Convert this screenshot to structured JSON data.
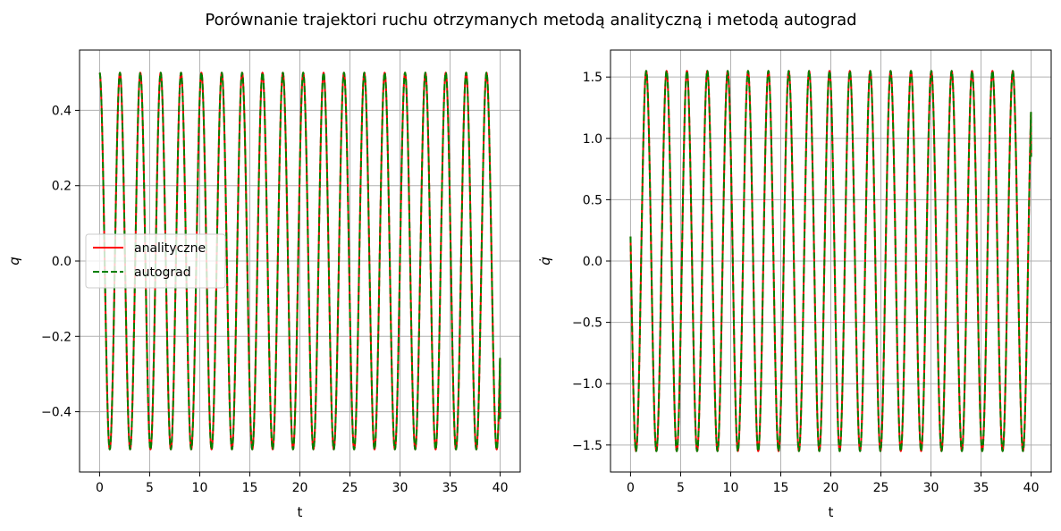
{
  "figure": {
    "title": "Porównanie trajektori ruchu otrzymanych metodą analityczną i metodą autograd"
  },
  "legend": {
    "placement": "center-left",
    "entries": [
      "analityczne",
      "autograd"
    ]
  },
  "colors": {
    "analityczne": "#ff0000",
    "autograd": "#008000",
    "grid": "#b0b0b0"
  },
  "chart_data": [
    {
      "type": "line",
      "xlabel": "t",
      "ylabel": "q",
      "xlim": [
        -2,
        42
      ],
      "ylim": [
        -0.56,
        0.56
      ],
      "xticks": [
        0,
        5,
        10,
        15,
        20,
        25,
        30,
        35,
        40
      ],
      "yticks": [
        -0.4,
        -0.2,
        0.0,
        0.2,
        0.4
      ],
      "ytick_labels": [
        "−0.4",
        "−0.2",
        "0.0",
        "0.2",
        "0.4"
      ],
      "grid": true,
      "legend": "center-left",
      "signal": {
        "form": "amplitude*cos(omega*t)",
        "amplitude": 0.5,
        "omega": 3.09,
        "t_start": 0,
        "t_end": 40,
        "end_value": -0.42
      },
      "series": [
        {
          "name": "analityczne",
          "style": "solid",
          "color": "#ff0000"
        },
        {
          "name": "autograd",
          "style": "dashed",
          "color": "#008000"
        }
      ]
    },
    {
      "type": "line",
      "xlabel": "t",
      "ylabel": "q̇",
      "xlim": [
        -2,
        42
      ],
      "ylim": [
        -1.72,
        1.72
      ],
      "xticks": [
        0,
        5,
        10,
        15,
        20,
        25,
        30,
        35,
        40
      ],
      "yticks": [
        -1.5,
        -1.0,
        -0.5,
        0.0,
        0.5,
        1.0,
        1.5
      ],
      "ytick_labels": [
        "−1.5",
        "−1.0",
        "−0.5",
        "0.0",
        "0.5",
        "1.0",
        "1.5"
      ],
      "grid": true,
      "legend": "none",
      "signal": {
        "form": "-amplitude*sin(omega*t - phase)",
        "amplitude": 1.55,
        "omega": 3.09,
        "phase": 0.13,
        "t_start": 0,
        "t_end": 40,
        "start_value": 0.2,
        "end_value": 0.85
      },
      "series": [
        {
          "name": "analityczne",
          "style": "solid",
          "color": "#ff0000"
        },
        {
          "name": "autograd",
          "style": "dashed",
          "color": "#008000"
        }
      ]
    }
  ]
}
